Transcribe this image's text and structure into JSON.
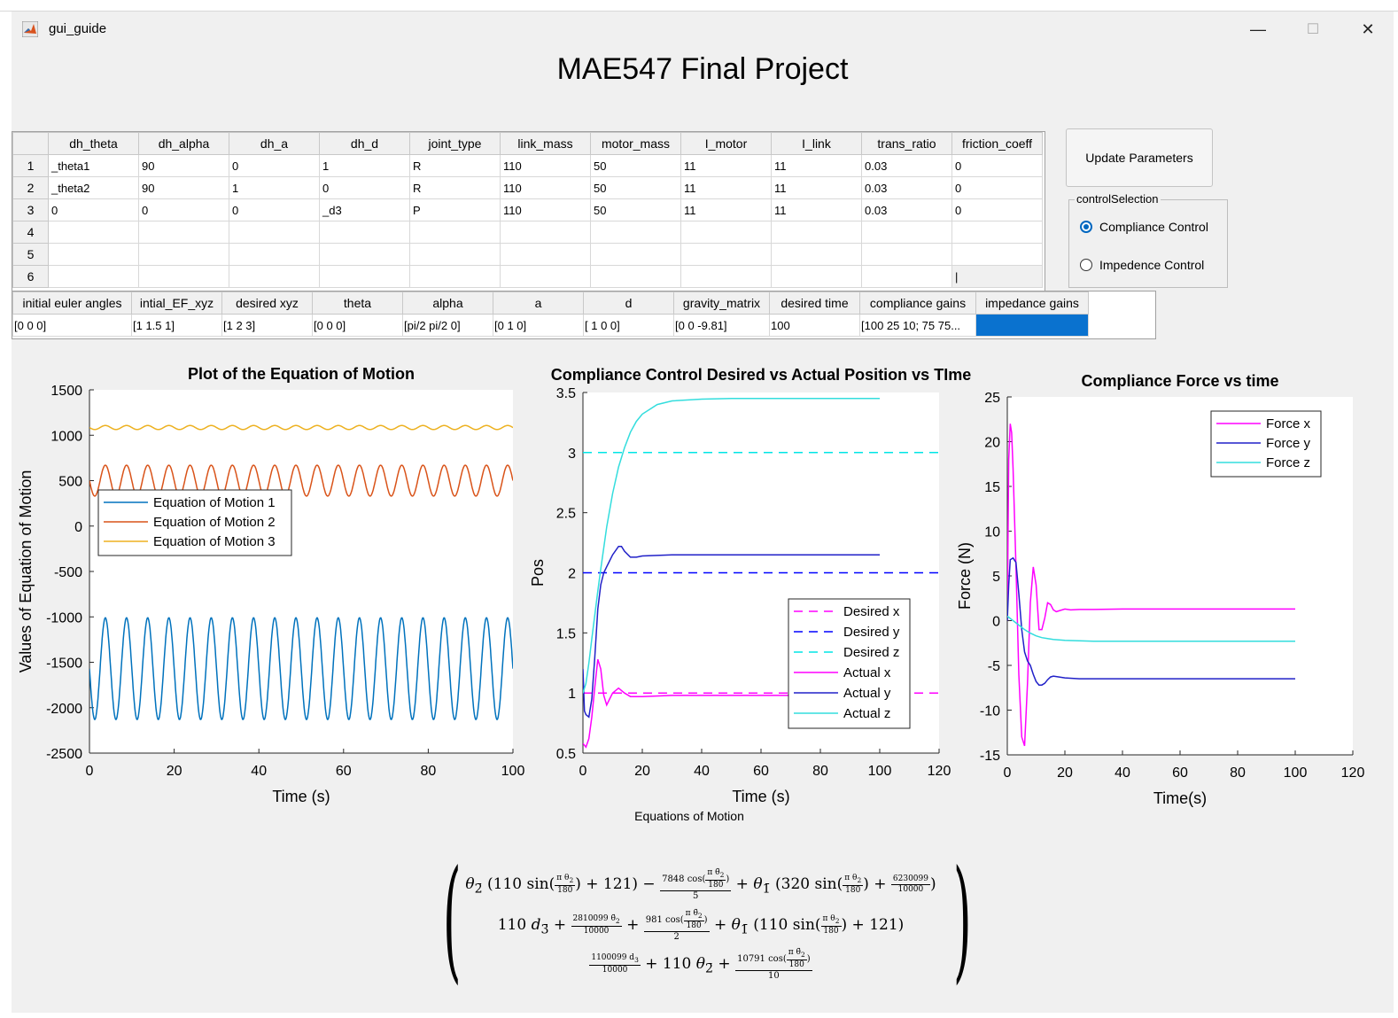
{
  "window": {
    "title": "gui_guide",
    "controls": {
      "minimize": "—",
      "maximize": "☐",
      "close": "✕"
    }
  },
  "page_title": "MAE547 Final Project",
  "dh_table": {
    "columns": [
      "dh_theta",
      "dh_alpha",
      "dh_a",
      "dh_d",
      "joint_type",
      "link_mass",
      "motor_mass",
      "I_motor",
      "I_link",
      "trans_ratio",
      "friction_coeff"
    ],
    "row_numbers": [
      "1",
      "2",
      "3",
      "4",
      "5",
      "6"
    ],
    "rows": [
      [
        "_theta1",
        "90",
        "0",
        "1",
        "R",
        "110",
        "50",
        "11",
        "11",
        "0.03",
        "0"
      ],
      [
        "_theta2",
        "90",
        "1",
        "0",
        "R",
        "110",
        "50",
        "11",
        "11",
        "0.03",
        "0"
      ],
      [
        "0",
        "0",
        "0",
        "_d3",
        "P",
        "110",
        "50",
        "11",
        "11",
        "0.03",
        "0"
      ],
      [
        "",
        "",
        "",
        "",
        "",
        "",
        "",
        "",
        "",
        "",
        ""
      ],
      [
        "",
        "",
        "",
        "",
        "",
        "",
        "",
        "",
        "",
        "",
        ""
      ],
      [
        "",
        "",
        "",
        "",
        "",
        "",
        "",
        "",
        "",
        "",
        "|"
      ]
    ]
  },
  "param_table": {
    "columns": [
      "initial euler angles",
      "intial_EF_xyz",
      "desired xyz",
      "theta",
      "alpha",
      "a",
      "d",
      "gravity_matrix",
      "desired time",
      "compliance gains",
      "impedance gains"
    ],
    "row": [
      "[0 0 0]",
      "[1 1.5 1]",
      "[1 2 3]",
      "[0 0 0]",
      "[pi/2 pi/2 0]",
      "[0 1 0]",
      "[ 1 0 0]",
      "[0 0 -9.81]",
      "100",
      "[100 25 10; 75 75...",
      ""
    ]
  },
  "update_button": "Update Parameters",
  "control_selection": {
    "title": "controlSelection",
    "options": [
      "Compliance Control",
      "Impedence Control"
    ],
    "selected": "Compliance Control"
  },
  "chart_data": [
    {
      "type": "line",
      "title": "Plot of the Equation of Motion",
      "xlabel": "Time (s)",
      "ylabel": "Values of Equation of Motion",
      "xlim": [
        0,
        100
      ],
      "ylim": [
        -2500,
        1500
      ],
      "xticks": [
        "0",
        "20",
        "40",
        "60",
        "80",
        "100"
      ],
      "yticks": [
        "1500",
        "1000",
        "500",
        "0",
        "-500",
        "-1000",
        "-1500",
        "-2000",
        "-2500"
      ],
      "legend": "upper-left",
      "series": [
        {
          "name": "Equation of Motion 1",
          "color": "#0072bd",
          "model": "oscillation",
          "mean": -1570,
          "amplitude": 560,
          "period": 5.0
        },
        {
          "name": "Equation of Motion 2",
          "color": "#d95319",
          "model": "oscillation",
          "mean": 500,
          "amplitude": 170,
          "period": 5.0
        },
        {
          "name": "Equation of Motion 3",
          "color": "#edb120",
          "model": "oscillation",
          "mean": 1085,
          "amplitude": 22,
          "period": 5.0
        }
      ]
    },
    {
      "type": "line",
      "title": "Compliance Control Desired vs Actual Position vs TIme",
      "xlabel": "Time (s)",
      "ylabel": "Pos",
      "xlim": [
        0,
        120
      ],
      "ylim": [
        0.5,
        3.5
      ],
      "xticks": [
        "0",
        "20",
        "40",
        "60",
        "80",
        "100",
        "120"
      ],
      "yticks": [
        "3.5",
        "3",
        "2.5",
        "2",
        "1.5",
        "1",
        "0.5"
      ],
      "legend": "lower-right",
      "series": [
        {
          "name": "Desired x",
          "color": "#ff00ff",
          "dashed": true,
          "x": [
            0,
            120
          ],
          "y": [
            1,
            1
          ]
        },
        {
          "name": "Desired y",
          "color": "#0000ff",
          "dashed": true,
          "x": [
            0,
            120
          ],
          "y": [
            2,
            2
          ]
        },
        {
          "name": "Desired z",
          "color": "#00e5e5",
          "dashed": true,
          "x": [
            0,
            120
          ],
          "y": [
            3,
            3
          ]
        },
        {
          "name": "Actual x",
          "color": "#ff00ff",
          "x": [
            0,
            1,
            2,
            3,
            4,
            5,
            6,
            7,
            8,
            9,
            10,
            12,
            14,
            16,
            20,
            30,
            50,
            100
          ],
          "y": [
            0.58,
            0.55,
            0.62,
            0.8,
            1.05,
            1.28,
            1.2,
            0.98,
            0.9,
            0.95,
            1.0,
            1.04,
            1.0,
            0.97,
            0.97,
            0.98,
            0.98,
            0.98
          ]
        },
        {
          "name": "Actual y",
          "color": "#2020c8",
          "x": [
            0,
            0.5,
            1,
            2,
            3,
            4,
            5,
            6,
            7,
            8,
            10,
            12,
            13,
            14,
            16,
            18,
            20,
            30,
            50,
            100
          ],
          "y": [
            1.2,
            0.85,
            0.82,
            0.8,
            0.95,
            1.3,
            1.7,
            1.9,
            2.0,
            2.05,
            2.15,
            2.22,
            2.22,
            2.18,
            2.13,
            2.13,
            2.14,
            2.15,
            2.15,
            2.15
          ]
        },
        {
          "name": "Actual z",
          "color": "#33dddd",
          "x": [
            0,
            1,
            2,
            3,
            4,
            5,
            6,
            8,
            10,
            12,
            14,
            16,
            18,
            20,
            25,
            30,
            40,
            50,
            60,
            80,
            100
          ],
          "y": [
            1.0,
            1.08,
            1.25,
            1.45,
            1.65,
            1.85,
            2.03,
            2.38,
            2.66,
            2.88,
            3.04,
            3.17,
            3.26,
            3.32,
            3.4,
            3.43,
            3.445,
            3.45,
            3.45,
            3.45,
            3.45
          ]
        }
      ]
    },
    {
      "type": "line",
      "title": "Compliance Force vs time",
      "xlabel": "Time(s)",
      "ylabel": "Force (N)",
      "xlim": [
        0,
        120
      ],
      "ylim": [
        -15,
        25
      ],
      "xticks": [
        "0",
        "20",
        "40",
        "60",
        "80",
        "100",
        "120"
      ],
      "yticks": [
        "25",
        "20",
        "15",
        "10",
        "5",
        "0",
        "-5",
        "-10",
        "-15"
      ],
      "legend": "upper-right",
      "series": [
        {
          "name": "Force x",
          "color": "#ff00ff",
          "x": [
            0,
            0.5,
            1,
            1.5,
            2,
            3,
            4,
            5,
            6,
            7,
            8,
            9,
            10,
            11,
            12,
            13,
            14,
            15,
            16,
            17,
            18,
            20,
            22,
            25,
            30,
            40,
            100
          ],
          "y": [
            0,
            18,
            22,
            21,
            17,
            6,
            -6,
            -13,
            -14,
            -7,
            2,
            6,
            4,
            -1,
            -1,
            0.3,
            2,
            1.8,
            1.2,
            1.0,
            1.1,
            1.3,
            1.2,
            1.25,
            1.25,
            1.3,
            1.3
          ]
        },
        {
          "name": "Force y",
          "color": "#2020c8",
          "x": [
            0,
            0.5,
            1,
            2,
            3,
            4,
            5,
            6,
            7,
            8,
            9,
            10,
            11,
            12,
            13,
            14,
            15,
            16,
            18,
            20,
            25,
            30,
            40,
            100
          ],
          "y": [
            0,
            4,
            6.8,
            7,
            6.5,
            3,
            -1,
            -3.5,
            -4.5,
            -5,
            -6,
            -6.8,
            -7.2,
            -7.2,
            -7.0,
            -6.6,
            -6.3,
            -6.2,
            -6.3,
            -6.4,
            -6.5,
            -6.5,
            -6.5,
            -6.5
          ]
        },
        {
          "name": "Force z",
          "color": "#33dddd",
          "x": [
            0,
            2,
            4,
            6,
            8,
            10,
            12,
            14,
            16,
            18,
            20,
            25,
            30,
            40,
            60,
            100
          ],
          "y": [
            0.5,
            0,
            -0.5,
            -1.0,
            -1.4,
            -1.7,
            -1.9,
            -2.0,
            -2.1,
            -2.15,
            -2.2,
            -2.25,
            -2.3,
            -2.3,
            -2.3,
            -2.3
          ]
        }
      ]
    }
  ],
  "equations_label": "Equations of Motion"
}
